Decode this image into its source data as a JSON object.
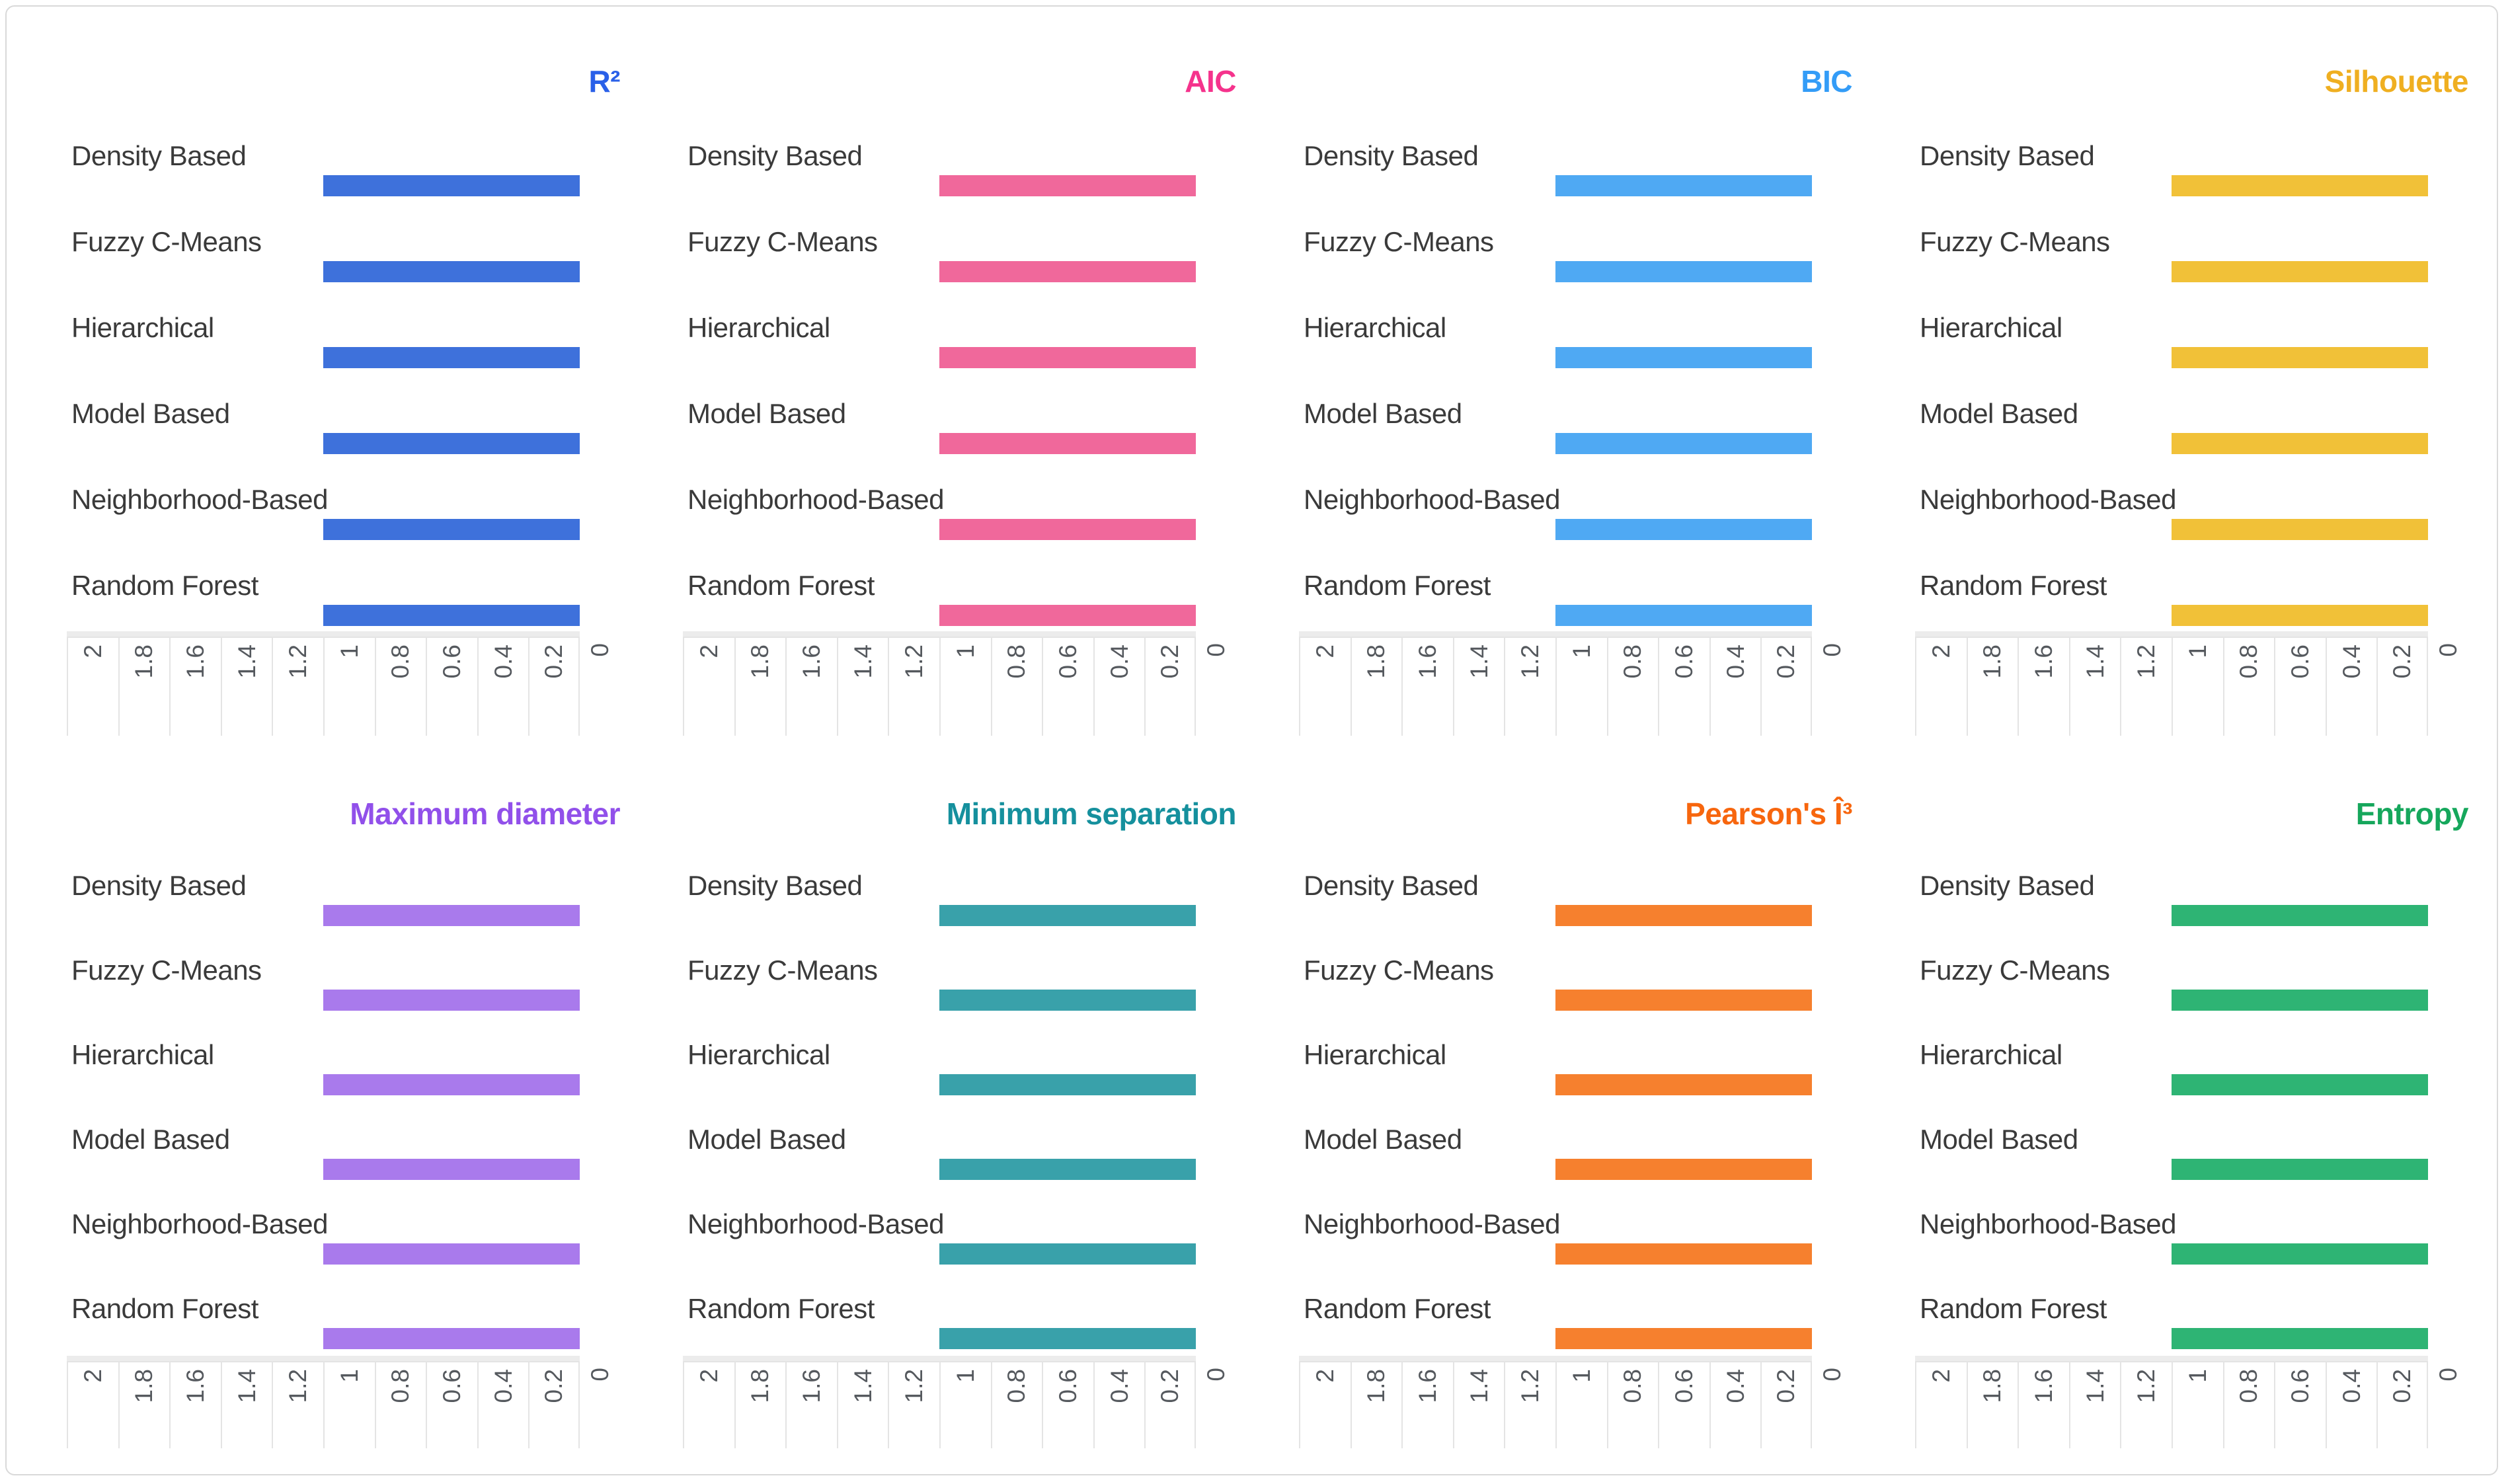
{
  "page": {
    "background": "#ffffff"
  },
  "card": {
    "background": "#ffffff",
    "border_color": "#d9d9d9"
  },
  "categories": [
    "Density Based",
    "Fuzzy C-Means",
    "Hierarchical",
    "Model Based",
    "Neighborhood-Based",
    "Random Forest"
  ],
  "category_label_color": "#3a3a3a",
  "axis": {
    "ticks": [
      "2",
      "1.8",
      "1.6",
      "1.4",
      "1.2",
      "1",
      "0.8",
      "0.6",
      "0.4",
      "0.2",
      "0"
    ],
    "direction": "reversed (2 at left, 0 at right)",
    "tick_label_color": "#55595e",
    "cell_border_color": "#e4e4e4",
    "baseline_band_color": "#ececec"
  },
  "chart_data": [
    {
      "type": "bar",
      "orientation": "horizontal",
      "title": "R²",
      "slug": "r2",
      "title_color": "#2a60e8",
      "bar_color": "#3e71db",
      "categories": [
        "Density Based",
        "Fuzzy C-Means",
        "Hierarchical",
        "Model Based",
        "Neighborhood-Based",
        "Random Forest"
      ],
      "values": [
        1,
        1,
        1,
        1,
        1,
        1
      ],
      "xlim": [
        2,
        0
      ],
      "xticks": [
        2,
        1.8,
        1.6,
        1.4,
        1.2,
        1,
        0.8,
        0.6,
        0.4,
        0.2,
        0
      ],
      "grid": false
    },
    {
      "type": "bar",
      "orientation": "horizontal",
      "title": "AIC",
      "slug": "aic",
      "title_color": "#f5338c",
      "bar_color": "#f0689b",
      "categories": [
        "Density Based",
        "Fuzzy C-Means",
        "Hierarchical",
        "Model Based",
        "Neighborhood-Based",
        "Random Forest"
      ],
      "values": [
        1,
        1,
        1,
        1,
        1,
        1
      ],
      "xlim": [
        2,
        0
      ],
      "xticks": [
        2,
        1.8,
        1.6,
        1.4,
        1.2,
        1,
        0.8,
        0.6,
        0.4,
        0.2,
        0
      ],
      "grid": false
    },
    {
      "type": "bar",
      "orientation": "horizontal",
      "title": "BIC",
      "slug": "bic",
      "title_color": "#339cf7",
      "bar_color": "#4fa9f3",
      "categories": [
        "Density Based",
        "Fuzzy C-Means",
        "Hierarchical",
        "Model Based",
        "Neighborhood-Based",
        "Random Forest"
      ],
      "values": [
        1,
        1,
        1,
        1,
        1,
        1
      ],
      "xlim": [
        2,
        0
      ],
      "xticks": [
        2,
        1.8,
        1.6,
        1.4,
        1.2,
        1,
        0.8,
        0.6,
        0.4,
        0.2,
        0
      ],
      "grid": false
    },
    {
      "type": "bar",
      "orientation": "horizontal",
      "title": "Silhouette",
      "slug": "silhouette",
      "title_color": "#efaf21",
      "bar_color": "#f1c138",
      "categories": [
        "Density Based",
        "Fuzzy C-Means",
        "Hierarchical",
        "Model Based",
        "Neighborhood-Based",
        "Random Forest"
      ],
      "values": [
        1,
        1,
        1,
        1,
        1,
        1
      ],
      "xlim": [
        2,
        0
      ],
      "xticks": [
        2,
        1.8,
        1.6,
        1.4,
        1.2,
        1,
        0.8,
        0.6,
        0.4,
        0.2,
        0
      ],
      "grid": false
    },
    {
      "type": "bar",
      "orientation": "horizontal",
      "title": "Maximum diameter",
      "slug": "maximum-diameter",
      "title_color": "#9150ea",
      "bar_color": "#a97aec",
      "categories": [
        "Density Based",
        "Fuzzy C-Means",
        "Hierarchical",
        "Model Based",
        "Neighborhood-Based",
        "Random Forest"
      ],
      "values": [
        1,
        1,
        1,
        1,
        1,
        1
      ],
      "xlim": [
        2,
        0
      ],
      "xticks": [
        2,
        1.8,
        1.6,
        1.4,
        1.2,
        1,
        0.8,
        0.6,
        0.4,
        0.2,
        0
      ],
      "grid": false
    },
    {
      "type": "bar",
      "orientation": "horizontal",
      "title": "Minimum separation",
      "slug": "minimum-separation",
      "title_color": "#15909d",
      "bar_color": "#39a1aa",
      "categories": [
        "Density Based",
        "Fuzzy C-Means",
        "Hierarchical",
        "Model Based",
        "Neighborhood-Based",
        "Random Forest"
      ],
      "values": [
        1,
        1,
        1,
        1,
        1,
        1
      ],
      "xlim": [
        2,
        0
      ],
      "xticks": [
        2,
        1.8,
        1.6,
        1.4,
        1.2,
        1,
        0.8,
        0.6,
        0.4,
        0.2,
        0
      ],
      "grid": false
    },
    {
      "type": "bar",
      "orientation": "horizontal",
      "title": "Pearson's Î³",
      "slug": "pearsons-gamma",
      "title_color": "#f7660e",
      "bar_color": "#f6802e",
      "categories": [
        "Density Based",
        "Fuzzy C-Means",
        "Hierarchical",
        "Model Based",
        "Neighborhood-Based",
        "Random Forest"
      ],
      "values": [
        1,
        1,
        1,
        1,
        1,
        1
      ],
      "xlim": [
        2,
        0
      ],
      "xticks": [
        2,
        1.8,
        1.6,
        1.4,
        1.2,
        1,
        0.8,
        0.6,
        0.4,
        0.2,
        0
      ],
      "grid": false
    },
    {
      "type": "bar",
      "orientation": "horizontal",
      "title": "Entropy",
      "slug": "entropy",
      "title_color": "#16a75c",
      "bar_color": "#2eb474",
      "categories": [
        "Density Based",
        "Fuzzy C-Means",
        "Hierarchical",
        "Model Based",
        "Neighborhood-Based",
        "Random Forest"
      ],
      "values": [
        1,
        1,
        1,
        1,
        1,
        1
      ],
      "xlim": [
        2,
        0
      ],
      "xticks": [
        2,
        1.8,
        1.6,
        1.4,
        1.2,
        1,
        0.8,
        0.6,
        0.4,
        0.2,
        0
      ],
      "grid": false
    }
  ]
}
